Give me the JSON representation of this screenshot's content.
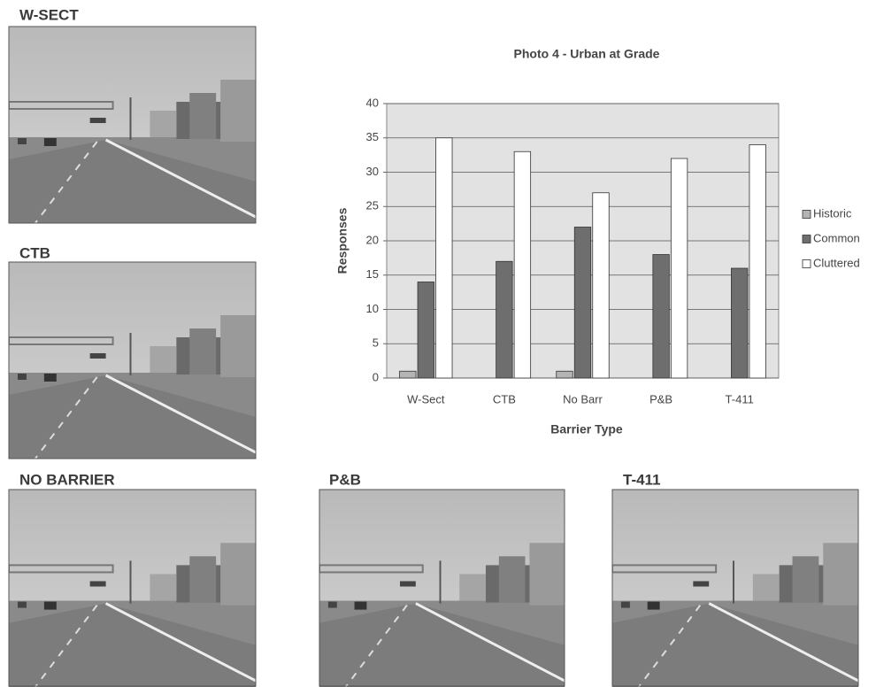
{
  "photo_labels": [
    "W-SECT",
    "CTB",
    "NO BARRIER",
    "P&B",
    "T-411"
  ],
  "chart_data": {
    "type": "bar",
    "title": "Photo 4 - Urban at Grade",
    "x_label": "Barrier Type",
    "y_label": "Responses",
    "categories": [
      "W-Sect",
      "CTB",
      "No Barr",
      "P&B",
      "T-411"
    ],
    "series": [
      {
        "name": "Historic",
        "color": "#b4b4b4",
        "values": [
          1,
          0,
          1,
          0,
          0
        ]
      },
      {
        "name": "Common",
        "color": "#6e6e6e",
        "values": [
          14,
          17,
          22,
          18,
          16
        ]
      },
      {
        "name": "Cluttered",
        "color": "#ffffff",
        "values": [
          35,
          33,
          27,
          32,
          34
        ]
      }
    ],
    "ylim": [
      0,
      40
    ],
    "yticks": [
      0,
      5,
      10,
      15,
      20,
      25,
      30,
      35,
      40
    ],
    "grid": true,
    "legend": "right",
    "plot_background": "#e2e2e2"
  }
}
